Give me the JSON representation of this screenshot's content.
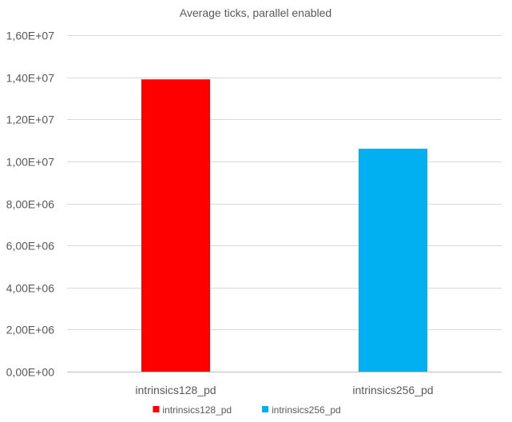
{
  "chart_data": {
    "type": "bar",
    "title": "Average ticks, parallel enabled",
    "categories": [
      "intrinsics128_pd",
      "intrinsics256_pd"
    ],
    "series": [
      {
        "name": "intrinsics128_pd",
        "category": "intrinsics128_pd",
        "value": 13900000,
        "color": "#ff0000"
      },
      {
        "name": "intrinsics256_pd",
        "category": "intrinsics256_pd",
        "value": 10600000,
        "color": "#00b0f0"
      }
    ],
    "ylim": [
      0,
      16000000
    ],
    "yticks": [
      {
        "value": 0,
        "label": "0,00E+00"
      },
      {
        "value": 2000000,
        "label": "2,00E+06"
      },
      {
        "value": 4000000,
        "label": "4,00E+06"
      },
      {
        "value": 6000000,
        "label": "6,00E+06"
      },
      {
        "value": 8000000,
        "label": "8,00E+06"
      },
      {
        "value": 10000000,
        "label": "1,00E+07"
      },
      {
        "value": 12000000,
        "label": "1,20E+07"
      },
      {
        "value": 14000000,
        "label": "1,40E+07"
      },
      {
        "value": 16000000,
        "label": "1,60E+07"
      }
    ],
    "grid": true,
    "legend_position": "bottom"
  }
}
